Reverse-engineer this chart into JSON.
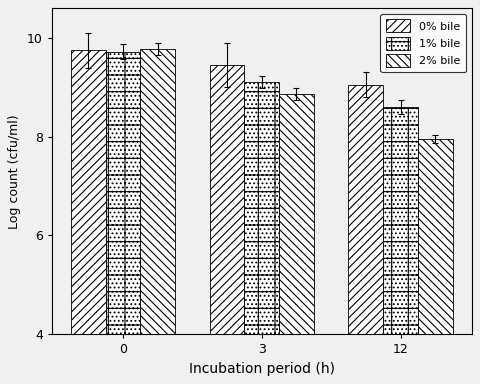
{
  "groups": [
    0,
    3,
    12
  ],
  "group_labels": [
    "0",
    "3",
    "12"
  ],
  "series": [
    "0% bile",
    "1% bile",
    "2% bile"
  ],
  "values": [
    [
      9.75,
      9.72,
      9.78
    ],
    [
      9.45,
      9.1,
      8.87
    ],
    [
      9.05,
      8.6,
      7.95
    ]
  ],
  "errors": [
    [
      0.35,
      0.15,
      0.12
    ],
    [
      0.45,
      0.12,
      0.12
    ],
    [
      0.25,
      0.15,
      0.08
    ]
  ],
  "xlabel": "Incubation period (h)",
  "ylabel": "Log count (cfu/ml)",
  "ylim": [
    4,
    10.6
  ],
  "yticks": [
    4,
    6,
    8,
    10
  ],
  "bar_width": 0.25,
  "hatch_patterns": [
    "////",
    "....",
    "\\\\\\\\"
  ],
  "bar_edgecolor": "#000000",
  "legend_loc": "upper right",
  "figsize": [
    4.8,
    3.84
  ],
  "dpi": 100,
  "bg_color": "#f0f0f0"
}
